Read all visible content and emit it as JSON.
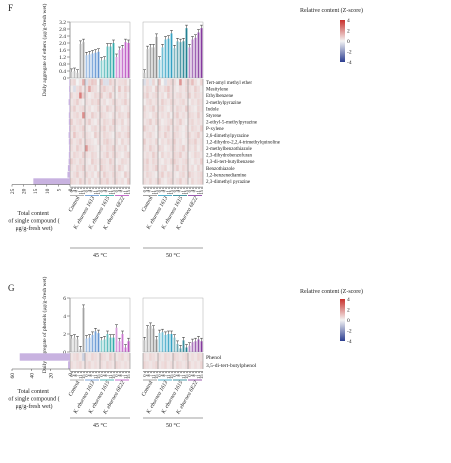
{
  "chart_data": [
    {
      "type": "bar+heatmap",
      "panel_label": "F",
      "bar_ylabel": "Daily aggregate of ethers (μg/g-fresh wet)",
      "bar_yticks": [
        "0",
        "0.4",
        "0.8",
        "1.2",
        "1.6",
        "2.0",
        "2.4",
        "2.8",
        "3.2"
      ],
      "bar_ylim": [
        0,
        3.2
      ],
      "side_xlabel": "Total content of single compound (μg/g-fresh wet)",
      "side_xticks": [
        "25",
        "20",
        "15",
        "10",
        "5",
        "0"
      ],
      "side_xlim": [
        0,
        25
      ],
      "colorbar_title": "Relative content (Z-score)",
      "colorbar_ticks": [
        "4",
        "2",
        "0",
        "-2",
        "-4"
      ],
      "temperatures": [
        "45 °C",
        "50 °C"
      ],
      "groups": [
        "Control",
        "K. eburnea 1613",
        "K. eburnea 1615",
        "K. eburnea 6E22"
      ],
      "days": [
        "0 d",
        "4 d",
        "7 d",
        "11 d",
        "15 d"
      ],
      "compounds": [
        "Tert-amyl methyl ether",
        "Mesitylene",
        "Ethylbenzene",
        "2-methylpyrazine",
        "Indole",
        "Styrene",
        "2-ethyl-5-methylpyrazine",
        "P-xylene",
        "2,6-dimethylpyrazine",
        "1,2-dihydro-2,2,4-trimethylquinoline",
        "2-methylbenzothiazole",
        "2,3-dihydrobenzofuran",
        "1,3-di-tert-butylbenzene",
        "Benzothiazole",
        "1,2-benzenediamine",
        "2,3-dimethyl pyrazine"
      ],
      "side_totals": [
        0.3,
        0.4,
        0.3,
        0.6,
        0.3,
        0.5,
        0.5,
        0.4,
        0.6,
        0.5,
        0.4,
        0.5,
        0.6,
        0.9,
        1.1,
        15.8
      ],
      "series": [
        {
          "temp": "45 °C",
          "group": "Control",
          "values": [
            0.35,
            0.4,
            0.3,
            1.95,
            2.05
          ]
        },
        {
          "temp": "45 °C",
          "group": "K. eburnea 1613",
          "values": [
            1.3,
            1.35,
            1.4,
            1.45,
            1.5
          ]
        },
        {
          "temp": "45 °C",
          "group": "K. eburnea 1615",
          "values": [
            1.0,
            1.05,
            1.8,
            1.8,
            2.0
          ]
        },
        {
          "temp": "45 °C",
          "group": "K. eburnea 6E22",
          "values": [
            1.2,
            1.6,
            1.7,
            2.05,
            2.0
          ]
        },
        {
          "temp": "50 °C",
          "group": "Control",
          "values": [
            0.3,
            1.65,
            1.75,
            1.75,
            2.35
          ]
        },
        {
          "temp": "50 °C",
          "group": "K. eburnea 1613",
          "values": [
            1.05,
            1.75,
            2.2,
            2.25,
            2.55
          ]
        },
        {
          "temp": "50 °C",
          "group": "K. eburnea 1615",
          "values": [
            1.7,
            2.1,
            2.05,
            2.1,
            2.85
          ]
        },
        {
          "temp": "50 °C",
          "group": "K. eburnea 6E22",
          "values": [
            1.75,
            2.2,
            2.3,
            2.6,
            2.85
          ]
        }
      ],
      "heatmap_zscores": [
        [
          0.3,
          0.4,
          0,
          0.2,
          0.9,
          -0.3,
          0.4,
          0.6,
          0.5,
          0,
          0.6,
          -0.3,
          -0.3,
          0.5,
          0.3,
          0.2,
          0.3,
          0.3,
          0.4,
          0.1,
          -0.3,
          0.3,
          -0.2,
          0.4,
          0.1,
          0.6,
          0,
          -0.3,
          0.3,
          0.4,
          0.3,
          0.1,
          1.2,
          0.2,
          0.4,
          0.4,
          0.7,
          0.3,
          0.1,
          0.4
        ],
        [
          0.1,
          -0.3,
          0.3,
          0.5,
          0.2,
          0.3,
          1.0,
          0.4,
          0.3,
          0.1,
          0.4,
          0.5,
          0.3,
          0.2,
          0.4,
          0.1,
          0.6,
          0.2,
          0.5,
          0.3,
          0.2,
          0.4,
          0.3,
          0.1,
          0.5,
          0.3,
          0.2,
          0.4,
          0.6,
          0.3,
          0.2,
          0.1,
          0.3,
          0.2,
          0.4,
          0.3,
          0.2,
          0.5,
          0.3,
          0.1
        ],
        [
          0.4,
          0.2,
          0.3,
          1.5,
          0.5,
          0.3,
          0.1,
          0.2,
          0.4,
          0.3,
          0.5,
          0.2,
          0.3,
          0.6,
          0.2,
          0.1,
          0.3,
          0.2,
          0.4,
          0.1,
          0.3,
          0.5,
          0.2,
          0.3,
          0.4,
          0.2,
          0.3,
          0.1,
          0.5,
          0.3,
          0.2,
          0.3,
          0.4,
          0.2,
          0.3,
          0.5,
          0.2,
          0.4,
          0.3,
          0.2
        ],
        [
          0.2,
          0.3,
          0.5,
          0.2,
          0.1,
          0.3,
          0.2,
          0.4,
          0.3,
          0.5,
          0.2,
          0.3,
          0.1,
          0.2,
          0.4,
          0.3,
          0.2,
          0.3,
          0.5,
          0.2,
          0.1,
          0.3,
          0.4,
          0.2,
          0.3,
          0.2,
          0.5,
          0.3,
          0.2,
          0.4,
          0.3,
          0.2,
          0.3,
          0.4,
          0.2,
          0.1,
          0.3,
          0.2,
          0.4,
          0.3
        ],
        [
          0.3,
          0.5,
          0.2,
          0.3,
          0.4,
          0.2,
          0.3,
          0.1,
          0.2,
          0.4,
          0.3,
          0.2,
          0.5,
          0.3,
          0.2,
          0.4,
          0.3,
          0.1,
          0.2,
          0.3,
          0.4,
          0.2,
          0.3,
          0.5,
          0.2,
          0.3,
          0.4,
          0.2,
          0.1,
          0.3,
          0.2,
          0.4,
          0.3,
          0.2,
          0.5,
          0.3,
          0.2,
          0.1,
          0.4,
          0.3
        ],
        [
          0.2,
          0.3,
          0.4,
          0.2,
          1.3,
          0.3,
          0.2,
          0.5,
          0.3,
          0.2,
          0.4,
          0.3,
          0.2,
          0.1,
          0.3,
          0.2,
          0.4,
          0.3,
          0.2,
          0.5,
          0.3,
          0.2,
          0.1,
          0.3,
          0.4,
          0.2,
          0.3,
          0.2,
          0.4,
          0.1,
          0.3,
          0.5,
          0.2,
          0.3,
          0.2,
          0.4,
          0.3,
          0.2,
          0.5,
          0.2
        ],
        [
          0.5,
          0.2,
          0.3,
          0.4,
          0.2,
          0.3,
          0.5,
          0.2,
          0.1,
          0.3,
          0.2,
          0.4,
          0.3,
          0.2,
          0.5,
          0.3,
          0.2,
          0.4,
          0.1,
          0.3,
          0.2,
          0.3,
          0.5,
          0.2,
          0.4,
          0.3,
          0.1,
          0.2,
          0.3,
          0.4,
          0.2,
          0.3,
          0.5,
          0.2,
          0.1,
          0.3,
          0.4,
          0.2,
          0.3,
          0.2
        ],
        [
          0.3,
          0.4,
          0.2,
          0.3,
          0.5,
          0.2,
          0.1,
          0.3,
          0.4,
          0.2,
          0.3,
          0.5,
          0.2,
          0.4,
          0.3,
          0.2,
          0.1,
          0.3,
          0.2,
          0.4,
          0.5,
          0.3,
          0.2,
          0.3,
          0.1,
          0.4,
          0.2,
          0.3,
          0.5,
          0.2,
          0.3,
          0.4,
          0.2,
          0.1,
          0.3,
          0.2,
          0.4,
          0.3,
          0.2,
          0.5
        ],
        [
          0.2,
          0.6,
          0.3,
          0.2,
          0.4,
          0.3,
          0.2,
          0.1,
          0.5,
          0.3,
          0.2,
          0.4,
          0.3,
          0.2,
          0.1,
          0.3,
          0.4,
          0.2,
          0.3,
          0.5,
          0.2,
          0.3,
          0.4,
          0.2,
          0.1,
          0.3,
          0.2,
          0.5,
          0.3,
          0.2,
          0.4,
          0.3,
          0.2,
          0.1,
          0.3,
          0.4,
          0.2,
          0.3,
          0.5,
          0.2
        ],
        [
          0.4,
          0.2,
          0.3,
          0.5,
          0.2,
          0.4,
          0.3,
          0.2,
          0.1,
          0.3,
          0.2,
          0.4,
          0.5,
          0.3,
          0.2,
          0.3,
          0.1,
          0.4,
          0.2,
          0.3,
          0.5,
          0.2,
          0.3,
          0.2,
          0.4,
          0.1,
          0.3,
          0.2,
          0.4,
          0.3,
          0.5,
          0.2,
          0.3,
          0.1,
          0.2,
          0.4,
          0.3,
          0.5,
          0.2,
          0.3
        ],
        [
          0.3,
          0.2,
          0.5,
          0.3,
          0.2,
          1.2,
          0.4,
          0.3,
          0.2,
          0.1,
          0.3,
          0.2,
          0.4,
          0.3,
          0.5,
          0.2,
          0.3,
          0.2,
          0.4,
          0.1,
          0.3,
          0.2,
          0.5,
          0.3,
          0.2,
          0.4,
          0.3,
          0.1,
          0.2,
          0.3,
          0.4,
          0.2,
          0.3,
          0.5,
          0.2,
          0.3,
          0.2,
          0.4,
          0.1,
          0.3
        ],
        [
          0.2,
          0.4,
          0.3,
          0.2,
          0.5,
          0.3,
          0.2,
          0.4,
          0.3,
          0.1,
          0.2,
          0.3,
          0.5,
          0.2,
          0.4,
          0.3,
          0.2,
          0.1,
          0.3,
          0.4,
          0.2,
          0.3,
          0.2,
          0.5,
          0.3,
          0.1,
          0.4,
          0.2,
          0.3,
          0.2,
          0.4,
          0.3,
          0.5,
          0.2,
          0.3,
          0.1,
          0.2,
          0.4,
          0.3,
          0.2
        ],
        [
          0.5,
          0.3,
          0.2,
          0.4,
          0.3,
          0.2,
          0.1,
          0.5,
          0.3,
          0.2,
          0.4,
          0.3,
          0.2,
          0.5,
          0.3,
          0.1,
          0.2,
          0.4,
          0.3,
          0.2,
          0.3,
          0.5,
          0.2,
          0.4,
          0.3,
          0.2,
          0.1,
          0.3,
          0.2,
          0.4,
          0.5,
          0.3,
          0.2,
          0.3,
          0.4,
          0.2,
          0.1,
          0.3,
          0.2,
          0.5
        ],
        [
          0.3,
          0.2,
          0.4,
          0.3,
          0.5,
          0.2,
          0.3,
          0.2,
          0.4,
          0.1,
          0.5,
          0.3,
          0.2,
          0.3,
          0.4,
          0.2,
          0.5,
          0.3,
          0.1,
          0.2,
          0.3,
          0.4,
          0.2,
          0.3,
          0.5,
          0.2,
          0.3,
          0.4,
          0.1,
          0.2,
          0.3,
          0.5,
          0.2,
          0.4,
          0.3,
          0.2,
          0.3,
          0.1,
          0.4,
          0.2
        ],
        [
          0.2,
          0.3,
          0.5,
          0.2,
          0.3,
          0.4,
          0.2,
          0.3,
          0.1,
          0.4,
          0.2,
          0.5,
          0.3,
          0.2,
          0.4,
          0.3,
          0.2,
          0.1,
          0.5,
          0.3,
          0.2,
          0.4,
          0.3,
          0.2,
          0.1,
          0.3,
          0.5,
          0.2,
          0.4,
          0.3,
          0.2,
          0.1,
          0.3,
          0.4,
          0.2,
          0.5,
          0.3,
          0.2,
          0.3,
          0.4
        ],
        [
          0.4,
          0.3,
          0.2,
          0.5,
          0.3,
          0.2,
          0.4,
          0.1,
          0.3,
          0.2,
          0.4,
          0.3,
          0.5,
          0.2,
          0.3,
          0.4,
          0.2,
          0.3,
          0.1,
          0.5,
          0.3,
          0.2,
          0.4,
          0.2,
          0.3,
          0.5,
          0.2,
          0.1,
          0.3,
          0.4,
          0.2,
          0.3,
          0.5,
          0.2,
          0.3,
          0.1,
          0.4,
          0.2,
          0.3,
          0.4
        ]
      ]
    },
    {
      "type": "bar+heatmap",
      "panel_label": "G",
      "bar_ylabel": "Daily aggregate of phenols (μg/g-fresh wet)",
      "bar_yticks": [
        "0",
        "2",
        "4",
        "6"
      ],
      "bar_ylim": [
        0,
        6
      ],
      "side_xlabel": "Total content of single compound (μg/g-fresh wet)",
      "side_xticks": [
        "60",
        "40",
        "20",
        "0"
      ],
      "side_xlim": [
        0,
        60
      ],
      "colorbar_title": "Relative content (Z-score)",
      "colorbar_ticks": [
        "4",
        "2",
        "0",
        "-2",
        "-4"
      ],
      "temperatures": [
        "45 °C",
        "50 °C"
      ],
      "groups": [
        "Control",
        "K. eburnea 1613",
        "K. eburnea 1615",
        "K. eburnea 6E22"
      ],
      "days": [
        "0 d",
        "4 d",
        "7 d",
        "11 d",
        "15 d"
      ],
      "compounds": [
        "Phenol",
        "3,5-di-tert-butylphenol"
      ],
      "side_totals": [
        52,
        2
      ],
      "series": [
        {
          "temp": "45 °C",
          "group": "Control",
          "values": [
            1.5,
            1.6,
            1.4,
            0.3,
            4.9
          ]
        },
        {
          "temp": "45 °C",
          "group": "K. eburnea 1613",
          "values": [
            1.5,
            1.6,
            1.9,
            2.3,
            2.1
          ]
        },
        {
          "temp": "45 °C",
          "group": "K. eburnea 1615",
          "values": [
            1.3,
            1.4,
            2.0,
            1.6,
            1.6
          ]
        },
        {
          "temp": "45 °C",
          "group": "K. eburnea 6E22",
          "values": [
            2.7,
            1.2,
            2.0,
            0.5,
            1.2
          ]
        },
        {
          "temp": "50 °C",
          "group": "Control",
          "values": [
            1.3,
            2.6,
            2.9,
            2.6,
            1.4
          ]
        },
        {
          "temp": "50 °C",
          "group": "K. eburnea 1613",
          "values": [
            2.1,
            2.2,
            1.9,
            2.0,
            2.0
          ]
        },
        {
          "temp": "50 °C",
          "group": "K. eburnea 1615",
          "values": [
            1.6,
            0.9,
            0.4,
            1.3,
            0.5
          ]
        },
        {
          "temp": "50 °C",
          "group": "K. eburnea 6E22",
          "values": [
            0.7,
            1.1,
            1.2,
            1.4,
            1.2
          ]
        }
      ],
      "heatmap_zscores": [
        [
          0.2,
          0.3,
          0.4,
          0.2,
          -0.5,
          0.3,
          0.2,
          0.4,
          0.3,
          0.2,
          0.4,
          0.3,
          0.2,
          0.5,
          0.3,
          0.2,
          0.3,
          0.4,
          0.2,
          0.3,
          0.3,
          0.2,
          0.4,
          0.3,
          0.2,
          0.3,
          0.2,
          0.4,
          0.3,
          0.2,
          0.4,
          0.3,
          0.2,
          0.3,
          0.4,
          0.2,
          0.3,
          0.2,
          0.4,
          0.3
        ],
        [
          0.3,
          0.2,
          0.3,
          0.4,
          0.2,
          0.3,
          0.4,
          0.2,
          0.3,
          0.2,
          0.3,
          0.2,
          0.4,
          0.3,
          0.2,
          0.4,
          0.3,
          0.2,
          0.3,
          0.2,
          0.4,
          0.3,
          0.2,
          0.3,
          0.4,
          0.2,
          0.3,
          0.4,
          0.2,
          0.3,
          0.2,
          0.4,
          0.3,
          0.2,
          0.3,
          0.4,
          0.2,
          0.3,
          0.2,
          0.4
        ]
      ]
    }
  ],
  "colors": {
    "groups": [
      "#9e9e9e",
      "#5b8fd0",
      "#2aa7a7",
      "#b84bbf"
    ],
    "groups50": [
      "#8a8a8a",
      "#2a9cc0",
      "#177a8c",
      "#7f2f9a"
    ],
    "heat_hi": "#c9302c",
    "heat_mid": "#f4f4f4",
    "heat_lo": "#2c3e91",
    "side_bar": "#c8b2e0"
  }
}
